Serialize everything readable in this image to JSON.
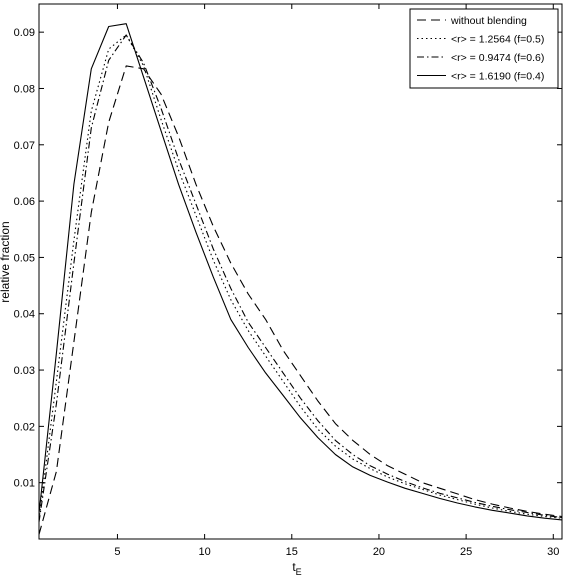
{
  "chart_data": {
    "type": "line",
    "title": "",
    "xlabel": "t",
    "xlabel_subscript": "E",
    "ylabel": "relative fraction",
    "xlim": [
      0.5,
      30.5
    ],
    "ylim": [
      0,
      0.095
    ],
    "xticks": [
      5,
      10,
      15,
      20,
      25,
      30
    ],
    "yticks": [
      0.01,
      0.02,
      0.03,
      0.04,
      0.05,
      0.06,
      0.07,
      0.08,
      0.09
    ],
    "ytick_labels": [
      "0.01",
      "0.02",
      "0.03",
      "0.04",
      "0.05",
      "0.06",
      "0.07",
      "0.08",
      "0.09"
    ],
    "grid": false,
    "legend_position": "top-right",
    "x": [
      0.5,
      1.5,
      2.5,
      3.5,
      4.5,
      5.5,
      6.5,
      7.5,
      8.5,
      9.5,
      10.5,
      11.5,
      12.5,
      13.5,
      14.5,
      15.5,
      16.5,
      17.5,
      18.5,
      19.5,
      20.5,
      21.5,
      22.5,
      23.5,
      24.5,
      25.5,
      26.5,
      27.5,
      28.5,
      29.5,
      30.5
    ],
    "series": [
      {
        "name": "without blending",
        "dash": "9,5",
        "values": [
          0.0008,
          0.012,
          0.035,
          0.058,
          0.074,
          0.084,
          0.0835,
          0.079,
          0.0715,
          0.063,
          0.0555,
          0.049,
          0.0435,
          0.039,
          0.0335,
          0.029,
          0.0245,
          0.0205,
          0.0175,
          0.015,
          0.013,
          0.0115,
          0.01,
          0.009,
          0.008,
          0.007,
          0.0062,
          0.0055,
          0.0049,
          0.0044,
          0.004
        ]
      },
      {
        "name": "<r> = 1.2564 (f=0.5)",
        "dash": "1.5,3",
        "values": [
          0.0035,
          0.028,
          0.053,
          0.076,
          0.087,
          0.0895,
          0.084,
          0.0745,
          0.0655,
          0.0575,
          0.0495,
          0.0425,
          0.037,
          0.0325,
          0.028,
          0.0235,
          0.0195,
          0.0165,
          0.0142,
          0.0125,
          0.011,
          0.0098,
          0.0088,
          0.0078,
          0.007,
          0.0062,
          0.0055,
          0.0049,
          0.0044,
          0.004,
          0.0037
        ]
      },
      {
        "name": "<r> = 0.9474 (f=0.6)",
        "dash": "7,3,1.5,3",
        "values": [
          0.003,
          0.024,
          0.049,
          0.073,
          0.085,
          0.0895,
          0.0845,
          0.0765,
          0.0675,
          0.0595,
          0.0515,
          0.0445,
          0.0385,
          0.034,
          0.0295,
          0.025,
          0.021,
          0.0175,
          0.015,
          0.013,
          0.0115,
          0.0102,
          0.0091,
          0.0081,
          0.0073,
          0.0065,
          0.0058,
          0.0052,
          0.0047,
          0.0042,
          0.0038
        ]
      },
      {
        "name": "<r> = 1.6190 (f=0.4)",
        "dash": "",
        "values": [
          0.0045,
          0.033,
          0.063,
          0.0835,
          0.091,
          0.0915,
          0.082,
          0.0725,
          0.063,
          0.0545,
          0.0465,
          0.039,
          0.034,
          0.0295,
          0.0255,
          0.0215,
          0.018,
          0.015,
          0.0128,
          0.0113,
          0.0101,
          0.009,
          0.0081,
          0.0072,
          0.0064,
          0.0057,
          0.0051,
          0.0046,
          0.0041,
          0.0037,
          0.0034
        ]
      }
    ]
  }
}
